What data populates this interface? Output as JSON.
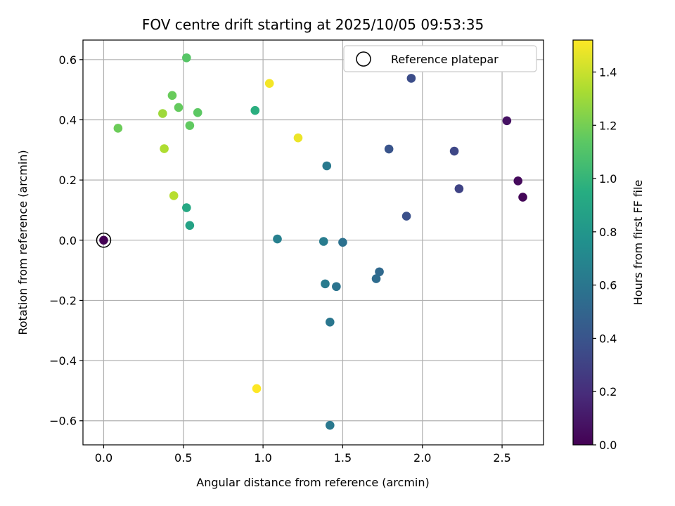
{
  "chart_data": {
    "type": "scatter",
    "title": "FOV centre drift starting at 2025/10/05 09:53:35",
    "xlabel": "Angular distance from reference (arcmin)",
    "ylabel": "Rotation from reference (arcmin)",
    "xlim": [
      -0.13,
      2.76
    ],
    "ylim": [
      -0.68,
      0.665
    ],
    "xticks": [
      0.0,
      0.5,
      1.0,
      1.5,
      2.0,
      2.5
    ],
    "xtick_labels": [
      "0.0",
      "0.5",
      "1.0",
      "1.5",
      "2.0",
      "2.5"
    ],
    "yticks": [
      -0.6,
      -0.4,
      -0.2,
      0.0,
      0.2,
      0.4,
      0.6
    ],
    "ytick_labels": [
      "−0.6",
      "−0.4",
      "−0.2",
      "0.0",
      "0.2",
      "0.4",
      "0.6"
    ],
    "grid": true,
    "legend": {
      "label": "Reference platepar",
      "position": "top-right"
    },
    "reference_point": {
      "x": 0.0,
      "y": 0.0
    },
    "colorbar": {
      "label": "Hours from first FF file",
      "range": [
        0.0,
        1.52
      ],
      "ticks": [
        0.0,
        0.2,
        0.4,
        0.6,
        0.8,
        1.0,
        1.2,
        1.4
      ],
      "tick_labels": [
        "0.0",
        "0.2",
        "0.4",
        "0.6",
        "0.8",
        "1.0",
        "1.2",
        "1.4"
      ],
      "colormap": "viridis"
    },
    "points": [
      {
        "x": 0.0,
        "y": 0.0,
        "t": 0.0
      },
      {
        "x": 2.63,
        "y": 0.143,
        "t": 0.02
      },
      {
        "x": 2.6,
        "y": 0.197,
        "t": 0.04
      },
      {
        "x": 2.53,
        "y": 0.397,
        "t": 0.07
      },
      {
        "x": 2.23,
        "y": 0.171,
        "t": 0.31
      },
      {
        "x": 2.2,
        "y": 0.296,
        "t": 0.33
      },
      {
        "x": 1.93,
        "y": 0.538,
        "t": 0.36
      },
      {
        "x": 1.9,
        "y": 0.08,
        "t": 0.38
      },
      {
        "x": 1.79,
        "y": 0.303,
        "t": 0.4
      },
      {
        "x": 1.73,
        "y": -0.105,
        "t": 0.52
      },
      {
        "x": 1.71,
        "y": -0.128,
        "t": 0.54
      },
      {
        "x": 1.5,
        "y": -0.007,
        "t": 0.57
      },
      {
        "x": 1.46,
        "y": -0.154,
        "t": 0.58
      },
      {
        "x": 1.42,
        "y": -0.272,
        "t": 0.6
      },
      {
        "x": 1.42,
        "y": -0.615,
        "t": 0.61
      },
      {
        "x": 1.4,
        "y": 0.247,
        "t": 0.62
      },
      {
        "x": 1.39,
        "y": -0.145,
        "t": 0.63
      },
      {
        "x": 1.38,
        "y": -0.004,
        "t": 0.64
      },
      {
        "x": 1.09,
        "y": 0.004,
        "t": 0.66
      },
      {
        "x": 0.54,
        "y": 0.049,
        "t": 0.88
      },
      {
        "x": 0.52,
        "y": 0.108,
        "t": 0.92
      },
      {
        "x": 0.95,
        "y": 0.431,
        "t": 0.96
      },
      {
        "x": 0.52,
        "y": 0.606,
        "t": 1.12
      },
      {
        "x": 0.59,
        "y": 0.424,
        "t": 1.14
      },
      {
        "x": 0.54,
        "y": 0.381,
        "t": 1.15
      },
      {
        "x": 0.47,
        "y": 0.441,
        "t": 1.16
      },
      {
        "x": 0.43,
        "y": 0.481,
        "t": 1.17
      },
      {
        "x": 0.09,
        "y": 0.372,
        "t": 1.18
      },
      {
        "x": 0.37,
        "y": 0.421,
        "t": 1.3
      },
      {
        "x": 0.38,
        "y": 0.304,
        "t": 1.34
      },
      {
        "x": 0.44,
        "y": 0.148,
        "t": 1.36
      },
      {
        "x": 1.22,
        "y": 0.34,
        "t": 1.48
      },
      {
        "x": 1.04,
        "y": 0.521,
        "t": 1.5
      },
      {
        "x": 0.96,
        "y": -0.493,
        "t": 1.52
      }
    ]
  }
}
